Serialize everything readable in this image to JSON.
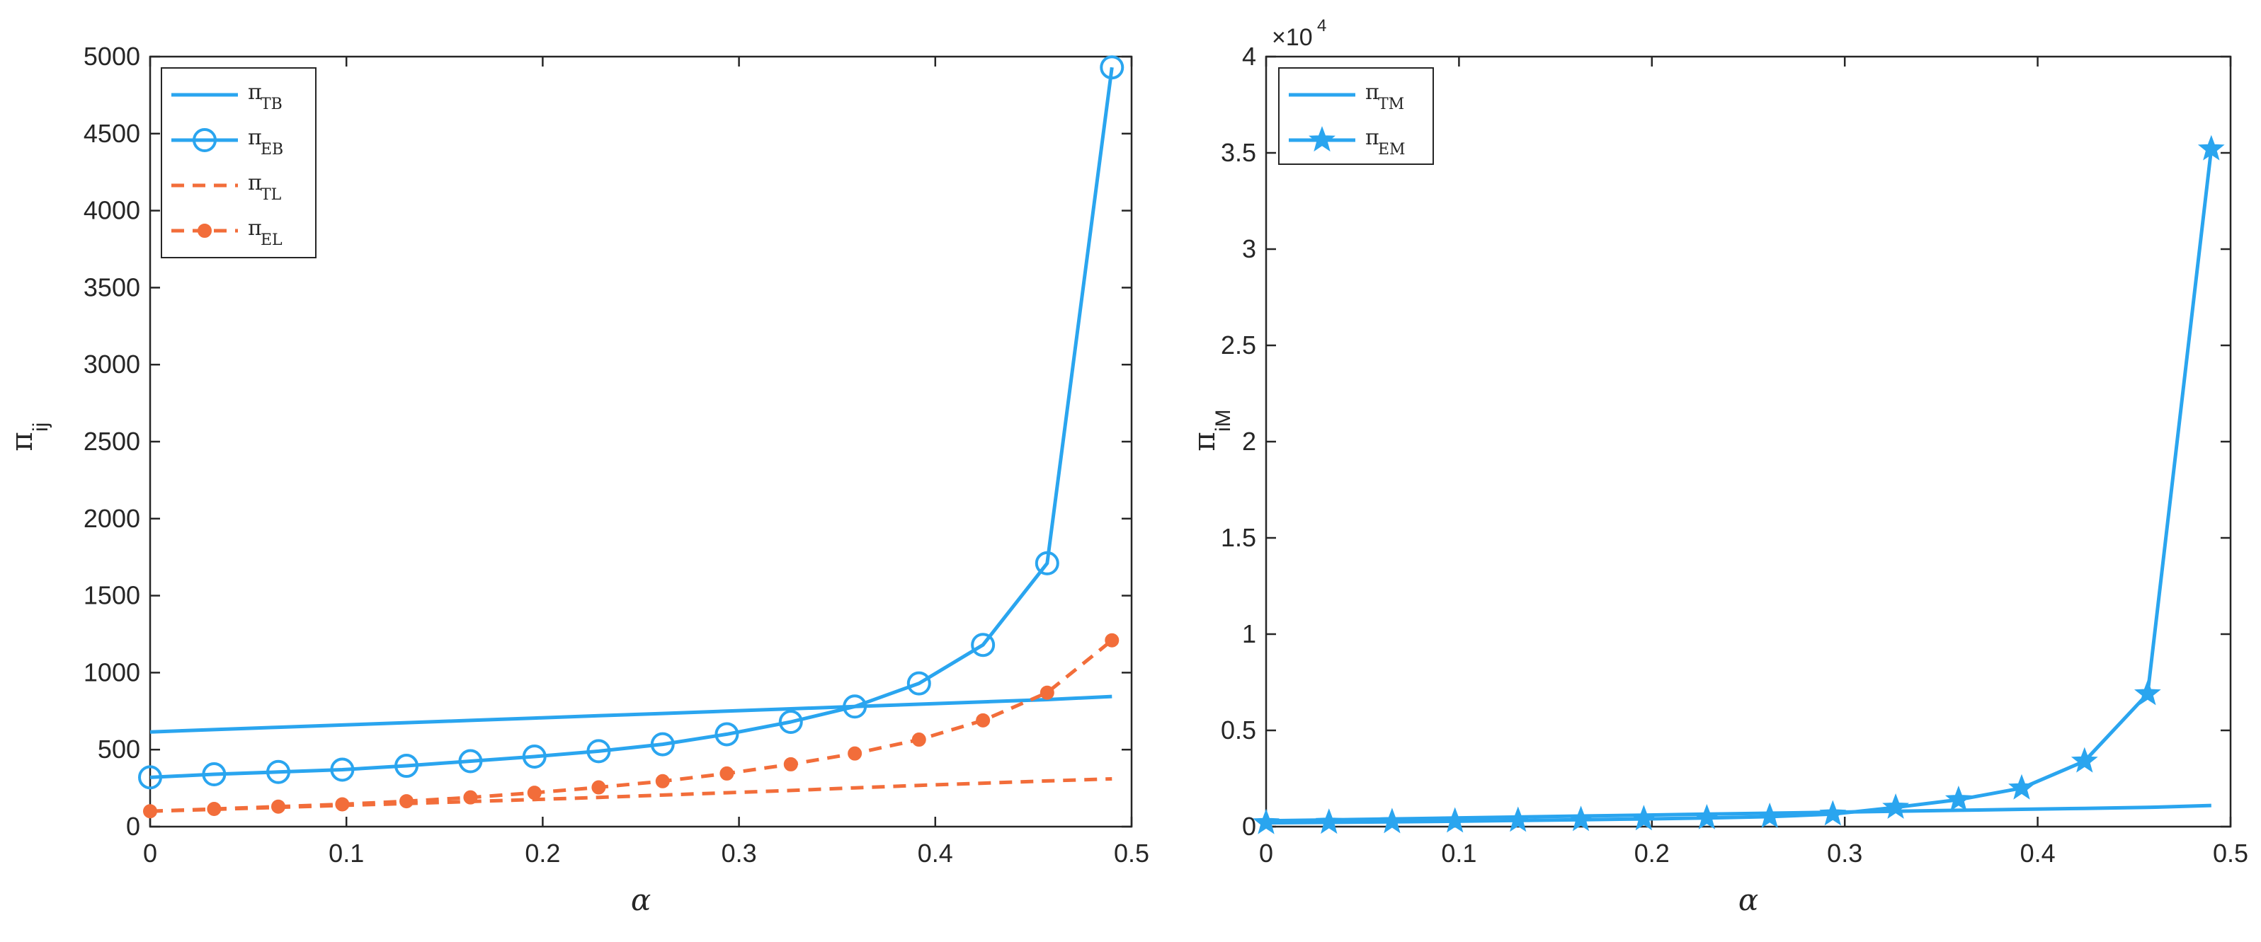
{
  "chart_data": [
    {
      "type": "line",
      "xlabel": "α",
      "ylabel": "π",
      "ylabel_sub": "ij",
      "xlim": [
        0,
        0.5
      ],
      "ylim": [
        0,
        5000
      ],
      "xticks": [
        "0",
        "0.1",
        "0.2",
        "0.3",
        "0.4",
        "0.5"
      ],
      "yticks": [
        "0",
        "500",
        "1000",
        "1500",
        "2000",
        "2500",
        "3000",
        "3500",
        "4000",
        "4500",
        "5000"
      ],
      "legend_position": "top-left",
      "x": [
        0,
        0.0326,
        0.0653,
        0.0979,
        0.1306,
        0.1632,
        0.1958,
        0.2285,
        0.2611,
        0.2938,
        0.3264,
        0.359,
        0.3917,
        0.4243,
        0.457,
        0.49
      ],
      "series": [
        {
          "name": "π",
          "sub": "TB",
          "color": "#2aa5ef",
          "style": "solid",
          "marker": "none",
          "values": [
            615,
            630,
            645,
            660,
            675,
            690,
            705,
            720,
            735,
            750,
            765,
            780,
            795,
            810,
            825,
            845
          ]
        },
        {
          "name": "π",
          "sub": "EB",
          "color": "#2aa5ef",
          "style": "solid",
          "marker": "circle",
          "values": [
            320,
            340,
            355,
            370,
            395,
            425,
            455,
            490,
            535,
            600,
            680,
            780,
            930,
            1180,
            1710,
            4930
          ]
        },
        {
          "name": "π",
          "sub": "TL",
          "color": "#f26d3a",
          "style": "dashed",
          "marker": "none",
          "values": [
            100,
            112,
            125,
            138,
            150,
            163,
            176,
            190,
            205,
            220,
            235,
            252,
            268,
            282,
            297,
            310
          ]
        },
        {
          "name": "π",
          "sub": "EL",
          "color": "#f26d3a",
          "style": "dashed",
          "marker": "dot",
          "values": [
            100,
            115,
            130,
            145,
            165,
            190,
            220,
            255,
            295,
            345,
            405,
            475,
            565,
            690,
            870,
            1210
          ]
        }
      ]
    },
    {
      "type": "line",
      "xlabel": "α",
      "ylabel": "π",
      "ylabel_sub": "iM",
      "multiplier": "×10",
      "multiplier_exp": "4",
      "xlim": [
        0,
        0.5
      ],
      "ylim": [
        0,
        4
      ],
      "xticks": [
        "0",
        "0.1",
        "0.2",
        "0.3",
        "0.4",
        "0.5"
      ],
      "yticks": [
        "0",
        "0.5",
        "1",
        "1.5",
        "2",
        "2.5",
        "3",
        "3.5",
        "4"
      ],
      "legend_position": "top-left",
      "x": [
        0,
        0.0326,
        0.0653,
        0.0979,
        0.1306,
        0.1632,
        0.1958,
        0.2285,
        0.2611,
        0.2938,
        0.3264,
        0.359,
        0.3917,
        0.4243,
        0.457,
        0.49
      ],
      "series": [
        {
          "name": "π",
          "sub": "TM",
          "color": "#2aa5ef",
          "style": "solid",
          "marker": "none",
          "values": [
            0.03,
            0.035,
            0.04,
            0.045,
            0.05,
            0.055,
            0.06,
            0.065,
            0.07,
            0.075,
            0.08,
            0.085,
            0.09,
            0.095,
            0.1,
            0.11
          ]
        },
        {
          "name": "π",
          "sub": "EM",
          "color": "#2aa5ef",
          "style": "solid",
          "marker": "star",
          "values": [
            0.02,
            0.022,
            0.025,
            0.028,
            0.032,
            0.036,
            0.04,
            0.045,
            0.052,
            0.065,
            0.1,
            0.14,
            0.2,
            0.34,
            0.69,
            3.52
          ]
        }
      ]
    }
  ]
}
